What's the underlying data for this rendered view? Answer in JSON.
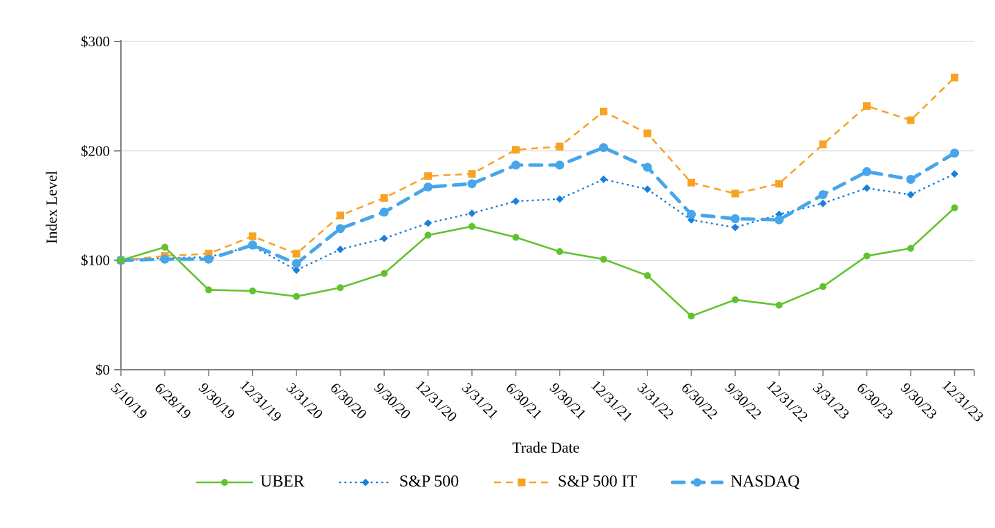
{
  "chart_data": {
    "type": "line",
    "title": "",
    "xlabel": "Trade Date",
    "ylabel": "Index Level",
    "ylim": [
      0,
      300
    ],
    "yticks": [
      0,
      100,
      200,
      300
    ],
    "ytick_prefix": "$",
    "grid": "horizontal",
    "legend_position": "bottom",
    "categories": [
      "5/10/19",
      "6/28/19",
      "9/30/19",
      "12/31/19",
      "3/31/20",
      "6/30/20",
      "9/30/20",
      "12/31/20",
      "3/31/21",
      "6/30/21",
      "9/30/21",
      "12/31/21",
      "3/31/22",
      "6/30/22",
      "9/30/22",
      "12/31/22",
      "3/31/23",
      "6/30/23",
      "9/30/23",
      "12/31/23"
    ],
    "series": [
      {
        "name": "UBER",
        "color": "#62C22E",
        "marker": "circle",
        "line_style": "solid",
        "values": [
          100,
          112,
          73,
          72,
          67,
          75,
          88,
          123,
          131,
          121,
          108,
          101,
          86,
          49,
          64,
          59,
          76,
          104,
          111,
          148
        ]
      },
      {
        "name": "S&P 500",
        "color": "#1B7FDE",
        "marker": "diamond",
        "line_style": "dotted",
        "values": [
          100,
          102,
          103,
          113,
          91,
          110,
          120,
          134,
          143,
          154,
          156,
          174,
          165,
          137,
          130,
          142,
          152,
          166,
          160,
          179
        ]
      },
      {
        "name": "S&P 500 IT",
        "color": "#F8A326",
        "marker": "square",
        "line_style": "dashed",
        "values": [
          100,
          104,
          106,
          122,
          106,
          141,
          157,
          177,
          179,
          201,
          204,
          236,
          216,
          171,
          161,
          170,
          206,
          241,
          228,
          267
        ]
      },
      {
        "name": "NASDAQ",
        "color": "#47A6EA",
        "marker": "circle",
        "line_style": "long-dash",
        "values": [
          100,
          101,
          101,
          114,
          97,
          129,
          144,
          167,
          170,
          187,
          187,
          203,
          185,
          142,
          138,
          137,
          160,
          181,
          174,
          198
        ]
      }
    ],
    "axis_color": "#808080",
    "gridline_color": "#D9D9D9",
    "text_color": "#000000"
  }
}
